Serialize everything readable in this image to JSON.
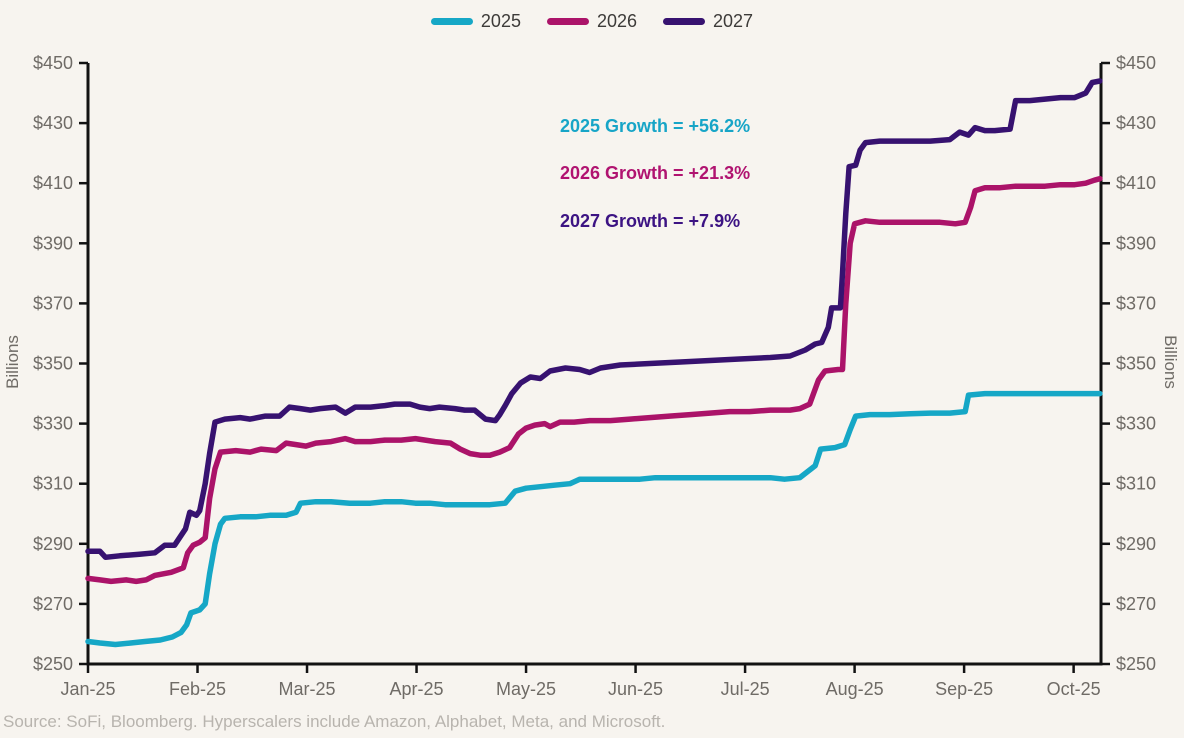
{
  "colors": {
    "background": "#f7f4ef",
    "axis": "#121212",
    "tick_label": "#6f6b66",
    "legend_text": "#3d3b39",
    "source_text": "#b8b4ae"
  },
  "legend": {
    "items": [
      {
        "label": "2025",
        "color": "#16a7c6"
      },
      {
        "label": "2026",
        "color": "#ab1369"
      },
      {
        "label": "2027",
        "color": "#371270"
      }
    ]
  },
  "annotations": [
    {
      "text": "2025 Growth = +56.2%",
      "color": "#17a5c7"
    },
    {
      "text": "2026 Growth = +21.3%",
      "color": "#b01370"
    },
    {
      "text": "2027 Growth = +7.9%",
      "color": "#3c1383"
    }
  ],
  "source": "Source: SoFi, Bloomberg. Hyperscalers include Amazon, Alphabet, Meta, and Microsoft.",
  "chart_data": {
    "type": "line",
    "title": "",
    "xlabel": "",
    "ylabel": "Billions",
    "y_tick_prefix": "$",
    "ylim": [
      250,
      450
    ],
    "y_tick_step": 20,
    "x_range_months": [
      0,
      9.25
    ],
    "x_tick_labels": [
      "Jan-25",
      "Feb-25",
      "Mar-25",
      "Apr-25",
      "May-25",
      "Jun-25",
      "Jul-25",
      "Aug-25",
      "Sep-25",
      "Oct-25"
    ],
    "grid": false,
    "legend_position": "top-center",
    "series": [
      {
        "name": "2025",
        "color": "#16a7c6",
        "points": [
          [
            0,
            257.5
          ],
          [
            0.11,
            257
          ],
          [
            0.25,
            256.5
          ],
          [
            0.39,
            257
          ],
          [
            0.52,
            257.5
          ],
          [
            0.66,
            258
          ],
          [
            0.77,
            259
          ],
          [
            0.85,
            260.5
          ],
          [
            0.9,
            263
          ],
          [
            0.94,
            267
          ],
          [
            1.02,
            268
          ],
          [
            1.07,
            270
          ],
          [
            1.11,
            280
          ],
          [
            1.16,
            290
          ],
          [
            1.21,
            296.5
          ],
          [
            1.25,
            298.5
          ],
          [
            1.39,
            299
          ],
          [
            1.53,
            299
          ],
          [
            1.66,
            299.5
          ],
          [
            1.81,
            299.5
          ],
          [
            1.9,
            300.5
          ],
          [
            1.94,
            303.5
          ],
          [
            2.08,
            304
          ],
          [
            2.22,
            304
          ],
          [
            2.39,
            303.5
          ],
          [
            2.58,
            303.5
          ],
          [
            2.71,
            304
          ],
          [
            2.86,
            304
          ],
          [
            2.99,
            303.5
          ],
          [
            3.12,
            303.5
          ],
          [
            3.26,
            303
          ],
          [
            3.4,
            303
          ],
          [
            3.53,
            303
          ],
          [
            3.67,
            303
          ],
          [
            3.81,
            303.5
          ],
          [
            3.9,
            307.5
          ],
          [
            4,
            308.5
          ],
          [
            4.13,
            309
          ],
          [
            4.26,
            309.5
          ],
          [
            4.4,
            310
          ],
          [
            4.49,
            311.5
          ],
          [
            4.68,
            311.5
          ],
          [
            4.86,
            311.5
          ],
          [
            5.04,
            311.5
          ],
          [
            5.18,
            312
          ],
          [
            5.31,
            312
          ],
          [
            5.5,
            312
          ],
          [
            5.68,
            312
          ],
          [
            5.86,
            312
          ],
          [
            6.04,
            312
          ],
          [
            6.23,
            312
          ],
          [
            6.36,
            311.5
          ],
          [
            6.5,
            312
          ],
          [
            6.64,
            316
          ],
          [
            6.69,
            321.5
          ],
          [
            6.82,
            322
          ],
          [
            6.91,
            323
          ],
          [
            6.96,
            328
          ],
          [
            7.01,
            332.5
          ],
          [
            7.14,
            333
          ],
          [
            7.32,
            333
          ],
          [
            7.51,
            333.3
          ],
          [
            7.69,
            333.5
          ],
          [
            7.87,
            333.5
          ],
          [
            8.01,
            334
          ],
          [
            8.04,
            339.5
          ],
          [
            8.19,
            340
          ],
          [
            8.38,
            340
          ],
          [
            8.56,
            340
          ],
          [
            8.74,
            340
          ],
          [
            8.92,
            340
          ],
          [
            9.11,
            340
          ],
          [
            9.24,
            340
          ]
        ]
      },
      {
        "name": "2026",
        "color": "#ab1369",
        "points": [
          [
            0,
            278.5
          ],
          [
            0.11,
            278
          ],
          [
            0.21,
            277.5
          ],
          [
            0.35,
            278
          ],
          [
            0.44,
            277.5
          ],
          [
            0.53,
            278
          ],
          [
            0.61,
            279.5
          ],
          [
            0.76,
            280.5
          ],
          [
            0.87,
            282
          ],
          [
            0.91,
            287
          ],
          [
            0.96,
            289.5
          ],
          [
            1.02,
            290.5
          ],
          [
            1.07,
            292
          ],
          [
            1.11,
            305
          ],
          [
            1.16,
            315
          ],
          [
            1.21,
            320.5
          ],
          [
            1.35,
            321
          ],
          [
            1.48,
            320.5
          ],
          [
            1.58,
            321.5
          ],
          [
            1.72,
            321
          ],
          [
            1.81,
            323.5
          ],
          [
            1.9,
            323
          ],
          [
            1.99,
            322.5
          ],
          [
            2.08,
            323.5
          ],
          [
            2.22,
            324
          ],
          [
            2.35,
            325
          ],
          [
            2.44,
            324
          ],
          [
            2.58,
            324
          ],
          [
            2.71,
            324.5
          ],
          [
            2.86,
            324.5
          ],
          [
            2.99,
            325
          ],
          [
            3.08,
            324.5
          ],
          [
            3.17,
            324
          ],
          [
            3.31,
            323.5
          ],
          [
            3.4,
            321.5
          ],
          [
            3.49,
            320
          ],
          [
            3.58,
            319.5
          ],
          [
            3.67,
            319.5
          ],
          [
            3.76,
            320.5
          ],
          [
            3.85,
            322
          ],
          [
            3.93,
            326.5
          ],
          [
            4,
            328.5
          ],
          [
            4.08,
            329.5
          ],
          [
            4.17,
            330
          ],
          [
            4.22,
            329
          ],
          [
            4.31,
            330.5
          ],
          [
            4.44,
            330.5
          ],
          [
            4.58,
            331
          ],
          [
            4.77,
            331
          ],
          [
            4.95,
            331.5
          ],
          [
            5.13,
            332
          ],
          [
            5.31,
            332.5
          ],
          [
            5.5,
            333
          ],
          [
            5.68,
            333.5
          ],
          [
            5.86,
            334
          ],
          [
            6.04,
            334
          ],
          [
            6.23,
            334.5
          ],
          [
            6.41,
            334.5
          ],
          [
            6.5,
            335
          ],
          [
            6.59,
            336.5
          ],
          [
            6.67,
            344.5
          ],
          [
            6.73,
            347.5
          ],
          [
            6.85,
            348
          ],
          [
            6.89,
            348
          ],
          [
            6.92,
            370
          ],
          [
            6.96,
            390
          ],
          [
            7,
            396.5
          ],
          [
            7.1,
            397.5
          ],
          [
            7.23,
            397
          ],
          [
            7.42,
            397
          ],
          [
            7.6,
            397
          ],
          [
            7.78,
            397
          ],
          [
            7.92,
            396.5
          ],
          [
            8.01,
            397
          ],
          [
            8.06,
            402
          ],
          [
            8.1,
            407.5
          ],
          [
            8.19,
            408.5
          ],
          [
            8.33,
            408.5
          ],
          [
            8.47,
            409
          ],
          [
            8.6,
            409
          ],
          [
            8.74,
            409
          ],
          [
            8.88,
            409.5
          ],
          [
            9.01,
            409.5
          ],
          [
            9.11,
            410
          ],
          [
            9.19,
            411
          ],
          [
            9.24,
            411.5
          ]
        ]
      },
      {
        "name": "2027",
        "color": "#371270",
        "points": [
          [
            0,
            287.5
          ],
          [
            0.11,
            287.5
          ],
          [
            0.16,
            285.5
          ],
          [
            0.29,
            286
          ],
          [
            0.47,
            286.5
          ],
          [
            0.61,
            287
          ],
          [
            0.7,
            289.5
          ],
          [
            0.79,
            289.5
          ],
          [
            0.89,
            295
          ],
          [
            0.93,
            300.5
          ],
          [
            0.99,
            299.5
          ],
          [
            1.02,
            301
          ],
          [
            1.07,
            310
          ],
          [
            1.11,
            320
          ],
          [
            1.16,
            330.5
          ],
          [
            1.25,
            331.5
          ],
          [
            1.39,
            332
          ],
          [
            1.48,
            331.5
          ],
          [
            1.62,
            332.5
          ],
          [
            1.75,
            332.5
          ],
          [
            1.84,
            335.5
          ],
          [
            1.94,
            335
          ],
          [
            2.03,
            334.5
          ],
          [
            2.12,
            335
          ],
          [
            2.26,
            335.5
          ],
          [
            2.35,
            333.5
          ],
          [
            2.44,
            335.5
          ],
          [
            2.58,
            335.5
          ],
          [
            2.71,
            336
          ],
          [
            2.8,
            336.5
          ],
          [
            2.94,
            336.5
          ],
          [
            3.03,
            335.5
          ],
          [
            3.12,
            335
          ],
          [
            3.21,
            335.5
          ],
          [
            3.35,
            335
          ],
          [
            3.44,
            334.5
          ],
          [
            3.53,
            334.5
          ],
          [
            3.63,
            331.5
          ],
          [
            3.72,
            331
          ],
          [
            3.76,
            333
          ],
          [
            3.81,
            336
          ],
          [
            3.87,
            340
          ],
          [
            3.95,
            343.5
          ],
          [
            4.04,
            345.5
          ],
          [
            4.13,
            345
          ],
          [
            4.22,
            347.5
          ],
          [
            4.36,
            348.5
          ],
          [
            4.49,
            348
          ],
          [
            4.58,
            347
          ],
          [
            4.68,
            348.5
          ],
          [
            4.86,
            349.5
          ],
          [
            5.13,
            350
          ],
          [
            5.41,
            350.5
          ],
          [
            5.68,
            351
          ],
          [
            5.95,
            351.5
          ],
          [
            6.23,
            352
          ],
          [
            6.41,
            352.5
          ],
          [
            6.55,
            354.5
          ],
          [
            6.64,
            356.5
          ],
          [
            6.7,
            357
          ],
          [
            6.76,
            362
          ],
          [
            6.79,
            368.5
          ],
          [
            6.87,
            368.5
          ],
          [
            6.89,
            380
          ],
          [
            6.92,
            400
          ],
          [
            6.95,
            415.5
          ],
          [
            7.01,
            416
          ],
          [
            7.05,
            421
          ],
          [
            7.1,
            423.5
          ],
          [
            7.23,
            424
          ],
          [
            7.42,
            424
          ],
          [
            7.69,
            424
          ],
          [
            7.87,
            424.5
          ],
          [
            7.96,
            427
          ],
          [
            8.04,
            426
          ],
          [
            8.1,
            428.5
          ],
          [
            8.19,
            427.5
          ],
          [
            8.28,
            427.5
          ],
          [
            8.42,
            428
          ],
          [
            8.47,
            437.5
          ],
          [
            8.6,
            437.5
          ],
          [
            8.74,
            438
          ],
          [
            8.88,
            438.5
          ],
          [
            9.01,
            438.5
          ],
          [
            9.11,
            440
          ],
          [
            9.17,
            443.5
          ],
          [
            9.24,
            444
          ]
        ]
      }
    ]
  }
}
